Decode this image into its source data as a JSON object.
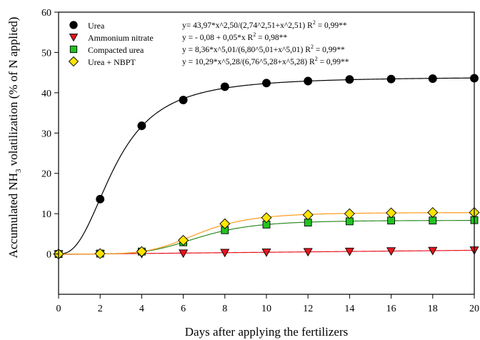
{
  "chart_data": {
    "type": "scatter",
    "xlabel": "Days after applying the fertilizers",
    "ylabel": {
      "prefix": "Accumulated NH",
      "sub": "3",
      "suffix": " volatilization (% of N applied)"
    },
    "xlim": [
      0,
      20
    ],
    "ylim": [
      -10,
      60
    ],
    "xticks": [
      "0",
      "2",
      "4",
      "6",
      "8",
      "10",
      "12",
      "14",
      "16",
      "18",
      "20"
    ],
    "yticks": [
      "0",
      "10",
      "20",
      "30",
      "40",
      "50",
      "60"
    ],
    "grid": false,
    "legend_position": "top-left",
    "series": [
      {
        "name": "Urea",
        "marker": "circle",
        "marker_color": "#000000",
        "line_color": "#000000",
        "equation": "y= 43,97*x^2,50/(2,74^2,51+x^2,51) R",
        "r2_sup": "2",
        "r2_value": " = 0,99**",
        "fit": {
          "kind": "hill",
          "a": 43.97,
          "b": 2.74,
          "c": 2.5
        },
        "x": [
          0,
          2,
          4,
          6,
          8,
          10,
          12,
          14,
          16,
          18,
          20
        ],
        "y": [
          0,
          13.6,
          31.8,
          38.2,
          41.5,
          42.4,
          42.9,
          43.3,
          43.4,
          43.5,
          43.6
        ]
      },
      {
        "name": "Ammonium nitrate",
        "marker": "triangle-down",
        "marker_color": "#e8141e",
        "line_color": "#e8141e",
        "equation": "y = - 0,08 + 0,05*x R",
        "r2_sup": "2",
        "r2_value": " = 0,98**",
        "fit": {
          "kind": "linear",
          "a": -0.08,
          "b": 0.05
        },
        "x": [
          0,
          2,
          4,
          6,
          8,
          10,
          12,
          14,
          16,
          18,
          20
        ],
        "y": [
          0,
          0.05,
          0.1,
          0.2,
          0.35,
          0.45,
          0.55,
          0.65,
          0.75,
          0.85,
          0.95
        ]
      },
      {
        "name": "Compacted urea",
        "marker": "square",
        "marker_color": "#22c322",
        "line_color": "#2e8b22",
        "equation": "y = 8,36*x^5,01/(6,80^5,01+x^5,01) R",
        "r2_sup": "2",
        "r2_value": " = 0,99**",
        "fit": {
          "kind": "hill",
          "a": 8.36,
          "b": 6.8,
          "c": 5.01
        },
        "x": [
          0,
          2,
          4,
          6,
          8,
          10,
          12,
          14,
          16,
          18,
          20
        ],
        "y": [
          0,
          0.1,
          0.6,
          2.9,
          5.9,
          7.3,
          7.8,
          8.1,
          8.3,
          8.3,
          8.4
        ]
      },
      {
        "name": "Urea + NBPT",
        "marker": "diamond",
        "marker_color": "#ffe400",
        "line_color": "#ff9a1a",
        "equation": "y = 10,29*x^5,28/(6,76^5,28+x^5,28) R",
        "r2_sup": "2",
        "r2_value": " = 0,99**",
        "fit": {
          "kind": "hill",
          "a": 10.29,
          "b": 6.76,
          "c": 5.28
        },
        "x": [
          0,
          2,
          4,
          6,
          8,
          10,
          12,
          14,
          16,
          18,
          20
        ],
        "y": [
          0,
          0.1,
          0.6,
          3.4,
          7.5,
          9.0,
          9.7,
          10.0,
          10.2,
          10.3,
          10.3
        ]
      }
    ]
  }
}
